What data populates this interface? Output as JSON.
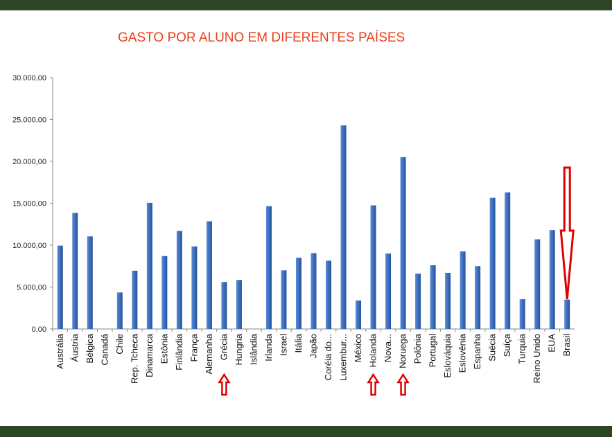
{
  "colors": {
    "frame": "#2e4524",
    "title": "#e8401c",
    "bar": "#3d6fbf",
    "arrow": "#e00000"
  },
  "chart_data": {
    "type": "bar",
    "title": "GASTO POR ALUNO EM DIFERENTES PAÍSES",
    "xlabel": "",
    "ylabel": "",
    "ylim": [
      0,
      30000
    ],
    "y_ticks": [
      "0,00",
      "5.000,00",
      "10.000,00",
      "15.000,00",
      "20.000,00",
      "25.000,00",
      "30.000,00"
    ],
    "grid": false,
    "categories": [
      "Austrália",
      "Áustria",
      "Bélgica",
      "Canadá",
      "Chile",
      "Rep. Tcheca",
      "Dinamarca",
      "Estônia",
      "Finlândia",
      "França",
      "Alemanha",
      "Grécia",
      "Hungria",
      "Islândia",
      "Irlanda",
      "Israel",
      "Itália",
      "Japão",
      "Coréia do...",
      "Luxembur...",
      "México",
      "Holanda",
      "Nova...",
      "Noruega",
      "Polônia",
      "Portugal",
      "Eslováquia",
      "Eslovênia",
      "Espanha",
      "Suécia",
      "Suíça",
      "Turquia",
      "Reino Unido",
      "EUA",
      "Brasil"
    ],
    "values": [
      9950,
      13850,
      11050,
      0,
      4350,
      6950,
      15050,
      8700,
      11700,
      9850,
      12850,
      5600,
      5850,
      0,
      14650,
      7000,
      8500,
      9050,
      8150,
      24300,
      3400,
      14750,
      9000,
      20500,
      6600,
      7600,
      6700,
      9250,
      7500,
      15650,
      16300,
      3550,
      10700,
      11800,
      3500
    ],
    "highlighted": [
      "Grécia",
      "Holanda",
      "Noruega",
      "Brasil"
    ]
  }
}
